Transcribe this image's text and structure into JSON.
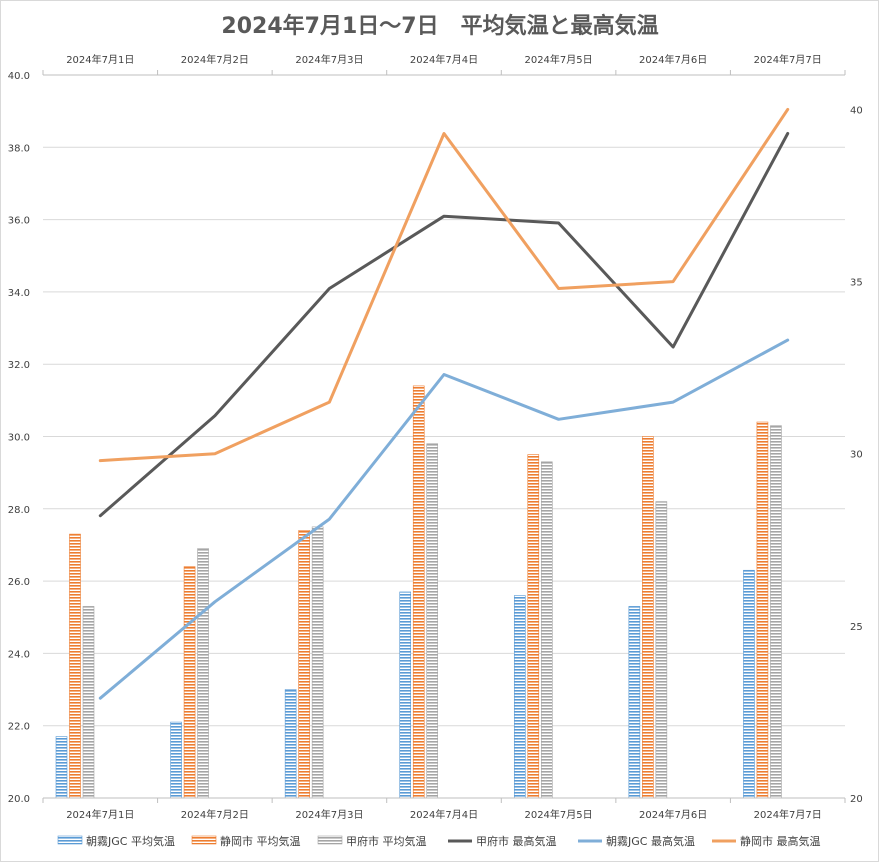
{
  "chart_data": {
    "type": "bar+line",
    "title": "2024年7月1日～7日　平均気温と最高気温",
    "categories": [
      "2024年7月1日",
      "2024年7月2日",
      "2024年7月3日",
      "2024年7月4日",
      "2024年7月5日",
      "2024年7月6日",
      "2024年7月7日"
    ],
    "y_left": {
      "min": 20,
      "max": 40,
      "ticks": [
        "20.0",
        "22.0",
        "24.0",
        "26.0",
        "28.0",
        "30.0",
        "32.0",
        "34.0",
        "36.0",
        "38.0",
        "40.0"
      ]
    },
    "y_right": {
      "min": 20,
      "max": 41,
      "ticks": [
        "20",
        "25",
        "30",
        "35",
        "40"
      ]
    },
    "grid": true,
    "legend_position": "bottom",
    "bar_series": [
      {
        "name": "朝霧JGC 平均気温",
        "color": "#5B9BD5",
        "values": [
          21.7,
          22.1,
          23.0,
          25.7,
          25.6,
          25.3,
          26.3
        ]
      },
      {
        "name": "静岡市 平均気温",
        "color": "#ED7D31",
        "values": [
          27.3,
          26.4,
          27.4,
          31.4,
          29.5,
          30.0,
          30.4
        ]
      },
      {
        "name": "甲府市 平均気温",
        "color": "#A5A5A5",
        "values": [
          25.3,
          26.9,
          27.5,
          29.8,
          29.3,
          28.2,
          30.3
        ]
      }
    ],
    "line_series": [
      {
        "name": "甲府市 最高気温",
        "color": "#595959",
        "axis": "right",
        "values": [
          28.2,
          31.1,
          34.8,
          36.9,
          36.7,
          33.1,
          39.3
        ]
      },
      {
        "name": "朝霧JGC 最高気温",
        "color": "#7FAED8",
        "axis": "right",
        "values": [
          22.9,
          25.7,
          28.1,
          32.3,
          31.0,
          31.5,
          33.3
        ]
      },
      {
        "name": "静岡市 最高気温",
        "color": "#F0A060",
        "axis": "right",
        "values": [
          29.8,
          30.0,
          31.5,
          39.3,
          34.8,
          35.0,
          40.0
        ]
      }
    ]
  }
}
